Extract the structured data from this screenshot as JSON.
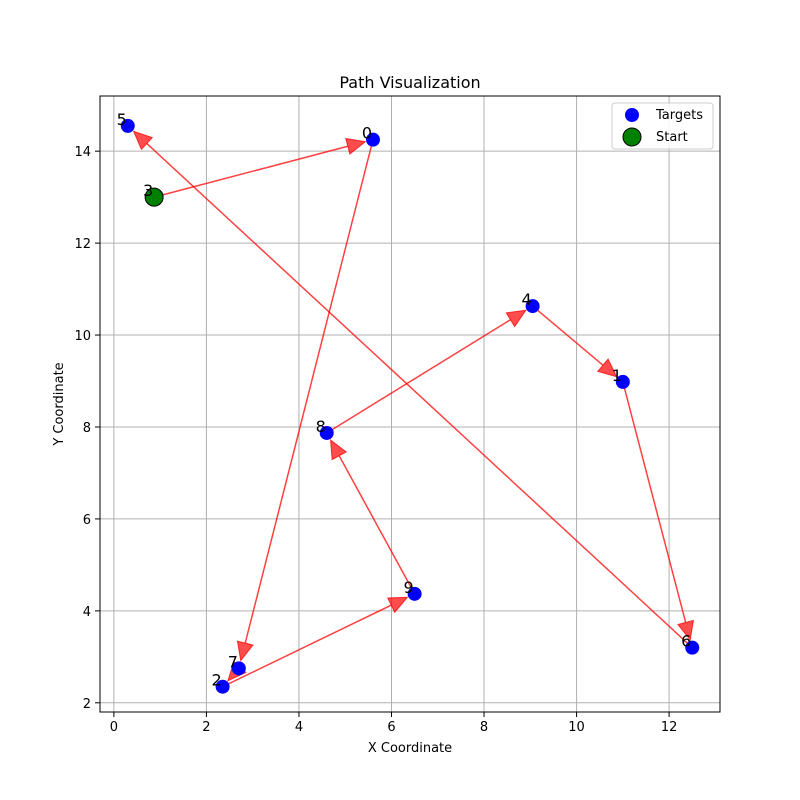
{
  "chart_data": {
    "type": "scatter",
    "title": "Path Visualization",
    "xlabel": "X Coordinate",
    "ylabel": "Y Coordinate",
    "xlim": [
      -0.3,
      13.1
    ],
    "ylim": [
      1.8,
      15.2
    ],
    "xticks": [
      0,
      2,
      4,
      6,
      8,
      10,
      12
    ],
    "yticks": [
      2,
      4,
      6,
      8,
      10,
      12,
      14
    ],
    "grid": true,
    "legend_position": "top-right",
    "legend": [
      {
        "name": "Targets",
        "color": "#0000ff",
        "edge": "#0000ff"
      },
      {
        "name": "Start",
        "color": "#008000",
        "edge": "#000000"
      }
    ],
    "targets": [
      {
        "id": "0",
        "x": 5.6,
        "y": 14.25
      },
      {
        "id": "1",
        "x": 11.0,
        "y": 8.98
      },
      {
        "id": "2",
        "x": 2.35,
        "y": 2.35
      },
      {
        "id": "4",
        "x": 9.05,
        "y": 10.63
      },
      {
        "id": "5",
        "x": 0.3,
        "y": 14.55
      },
      {
        "id": "6",
        "x": 12.5,
        "y": 3.2
      },
      {
        "id": "7",
        "x": 2.7,
        "y": 2.75
      },
      {
        "id": "8",
        "x": 4.6,
        "y": 7.87
      },
      {
        "id": "9",
        "x": 6.5,
        "y": 4.37
      }
    ],
    "start": {
      "id": "3",
      "x": 0.87,
      "y": 13.0
    },
    "path": [
      "3",
      "0",
      "7",
      "2",
      "9",
      "8",
      "4",
      "1",
      "6",
      "5"
    ],
    "path_color": "#ff0000"
  }
}
